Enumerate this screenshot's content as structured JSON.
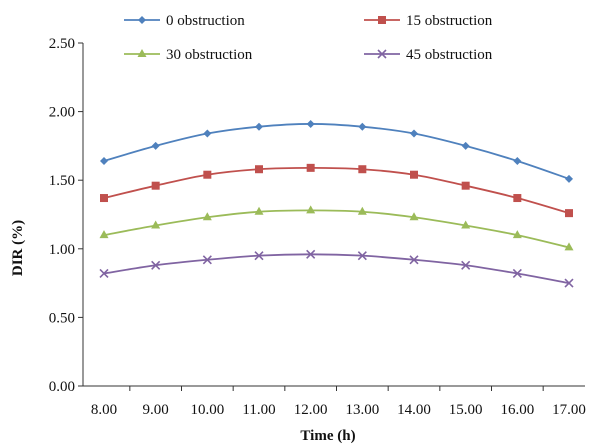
{
  "chart_data": {
    "type": "line",
    "title": "",
    "xlabel": "Time (h)",
    "ylabel": "DIR (%)",
    "categories": [
      "8.00",
      "9.00",
      "10.00",
      "11.00",
      "12.00",
      "13.00",
      "14.00",
      "15.00",
      "16.00",
      "17.00"
    ],
    "ylim": [
      0,
      2.5
    ],
    "yticks": [
      "0.00",
      "0.50",
      "1.00",
      "1.50",
      "2.00",
      "2.50"
    ],
    "grid": false,
    "legend_position": "top",
    "series": [
      {
        "name": "0 obstruction",
        "color": "#4f81bd",
        "marker": "diamond",
        "values": [
          1.64,
          1.75,
          1.84,
          1.89,
          1.91,
          1.89,
          1.84,
          1.75,
          1.64,
          1.51
        ]
      },
      {
        "name": "15 obstruction",
        "color": "#c0504d",
        "marker": "square",
        "values": [
          1.37,
          1.46,
          1.54,
          1.58,
          1.59,
          1.58,
          1.54,
          1.46,
          1.37,
          1.26
        ]
      },
      {
        "name": "30 obstruction",
        "color": "#9bbb59",
        "marker": "triangle",
        "values": [
          1.1,
          1.17,
          1.23,
          1.27,
          1.28,
          1.27,
          1.23,
          1.17,
          1.1,
          1.01
        ]
      },
      {
        "name": "45 obstruction",
        "color": "#8064a2",
        "marker": "x",
        "values": [
          0.82,
          0.88,
          0.92,
          0.95,
          0.96,
          0.95,
          0.92,
          0.88,
          0.82,
          0.75
        ]
      }
    ]
  }
}
